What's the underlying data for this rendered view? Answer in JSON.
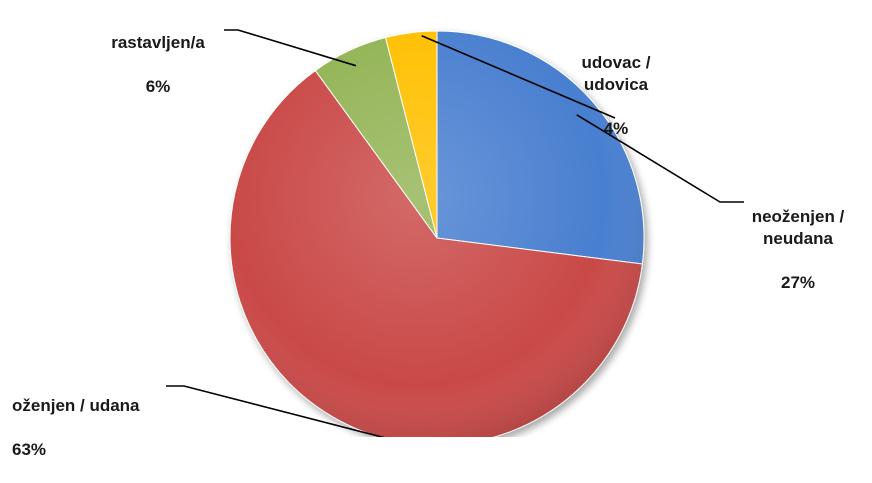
{
  "chart_data": {
    "type": "pie",
    "slices": [
      {
        "label": "neoženjen /\nneudana",
        "value": 27,
        "pct_label": "27%",
        "color": "#4a7fd0"
      },
      {
        "label": "oženjen / udana",
        "value": 63,
        "pct_label": "63%",
        "color": "#c94a46"
      },
      {
        "label": "rastavljen/a",
        "value": 6,
        "pct_label": "6%",
        "color": "#93b454"
      },
      {
        "label": "udovac /\nudovica",
        "value": 4,
        "pct_label": "4%",
        "color": "#ffc000"
      }
    ],
    "title": "",
    "legend": "none",
    "data_labels": "outside with leader lines"
  }
}
